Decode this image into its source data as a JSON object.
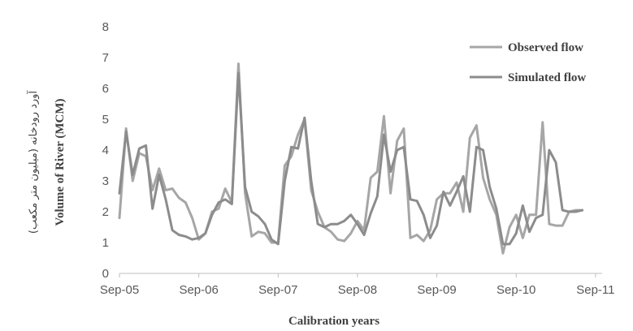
{
  "chart_data": {
    "type": "line",
    "title": "",
    "xlabel": "Calibration years",
    "ylabel": "Volume of River (MCM)",
    "ylabel_secondary": "آورد رودخانه (میلیون متر مکعب)",
    "ylim": [
      0,
      8
    ],
    "yticks": [
      "0",
      "1",
      "2",
      "3",
      "4",
      "5",
      "6",
      "7",
      "8"
    ],
    "xlim": [
      0,
      73
    ],
    "xticks": [
      {
        "label": "Sep-05",
        "x": 0
      },
      {
        "label": "Sep-06",
        "x": 12
      },
      {
        "label": "Sep-07",
        "x": 24
      },
      {
        "label": "Sep-08",
        "x": 36
      },
      {
        "label": "Sep-09",
        "x": 48
      },
      {
        "label": "Sep-10",
        "x": 60
      },
      {
        "label": "Sep-11",
        "x": 72
      }
    ],
    "grid": false,
    "legend_position": "top-right",
    "series": [
      {
        "name": "Observed flow",
        "color": "#a6a6a6",
        "values": [
          1.8,
          4.7,
          3.0,
          3.9,
          3.8,
          2.7,
          3.4,
          2.7,
          2.75,
          2.45,
          2.3,
          1.8,
          1.1,
          1.3,
          2.0,
          2.1,
          2.75,
          2.3,
          6.8,
          2.6,
          1.2,
          1.35,
          1.3,
          1.0,
          1.0,
          3.5,
          3.8,
          4.5,
          5.0,
          2.7,
          2.0,
          1.5,
          1.35,
          1.1,
          1.05,
          1.3,
          1.7,
          1.4,
          3.1,
          3.3,
          5.1,
          2.6,
          4.3,
          4.7,
          1.15,
          1.25,
          1.05,
          1.4,
          2.4,
          2.6,
          2.6,
          2.95,
          2.0,
          4.4,
          4.8,
          3.1,
          2.4,
          1.9,
          0.65,
          1.5,
          1.9,
          1.15,
          1.9,
          1.9,
          4.9,
          1.6,
          1.55,
          1.55,
          2.0,
          2.05,
          2.05
        ]
      },
      {
        "name": "Simulated flow",
        "color": "#8c8c8c",
        "values": [
          2.6,
          4.6,
          3.2,
          4.05,
          4.15,
          2.1,
          3.2,
          2.4,
          1.4,
          1.25,
          1.2,
          1.1,
          1.15,
          1.3,
          1.9,
          2.3,
          2.4,
          2.25,
          6.5,
          2.8,
          2.0,
          1.85,
          1.6,
          1.1,
          0.95,
          3.0,
          4.1,
          4.05,
          5.05,
          3.0,
          1.6,
          1.5,
          1.6,
          1.6,
          1.7,
          1.9,
          1.6,
          1.25,
          1.95,
          2.5,
          4.5,
          3.3,
          4.0,
          4.1,
          2.4,
          2.35,
          1.9,
          1.15,
          1.55,
          2.65,
          2.2,
          2.65,
          3.15,
          2.0,
          4.1,
          4.0,
          2.8,
          2.1,
          0.95,
          0.95,
          1.3,
          2.2,
          1.35,
          1.8,
          1.9,
          4.0,
          3.6,
          2.05,
          2.0,
          2.0,
          2.05
        ]
      }
    ]
  }
}
